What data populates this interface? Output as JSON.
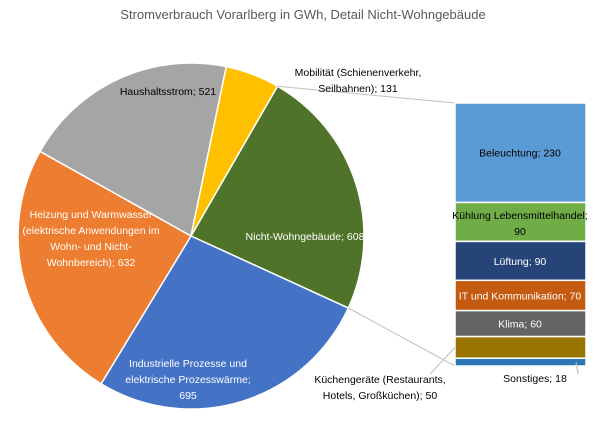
{
  "chart_data": {
    "type": "pie",
    "title": "Stromverbrauch Vorarlberg in GWh, Detail Nicht-Wohngebäude",
    "slices": [
      {
        "label": "Nicht-Wohngebäude; 608",
        "value": 608,
        "color": "#4E7329"
      },
      {
        "label": "Industrielle Prozesse und elektrische Prozesswärme; 695",
        "value": 695,
        "color": "#4472C4"
      },
      {
        "label": "Heizung und Warmwasser (elektrische Anwendungen im Wohn- und Nicht-Wohnbereich); 632",
        "value": 632,
        "color": "#ED7D31"
      },
      {
        "label": "Haushaltsstrom; 521",
        "value": 521,
        "color": "#A5A5A5"
      },
      {
        "label": "Mobilität (Schienenverkehr, Seilbahnen); 131",
        "value": 131,
        "color": "#FFC000"
      }
    ],
    "detail": {
      "of": "Nicht-Wohngebäude",
      "items": [
        {
          "label": "Beleuchtung; 230",
          "value": 230,
          "color": "#5B9BD5"
        },
        {
          "label": "Kühlung Lebensmittelhandel; 90",
          "value": 90,
          "color": "#70AD47"
        },
        {
          "label": "Lüftung; 90",
          "value": 90,
          "color": "#264478"
        },
        {
          "label": "IT und Kommunikation; 70",
          "value": 70,
          "color": "#C55A11"
        },
        {
          "label": "Klima; 60",
          "value": 60,
          "color": "#636363"
        },
        {
          "label": "Küchengeräte (Restaurants, Hotels, Großküchen); 50",
          "value": 50,
          "color": "#997300"
        },
        {
          "label": "Sonstiges; 18",
          "value": 18,
          "color": "#2E75B6"
        }
      ]
    }
  }
}
